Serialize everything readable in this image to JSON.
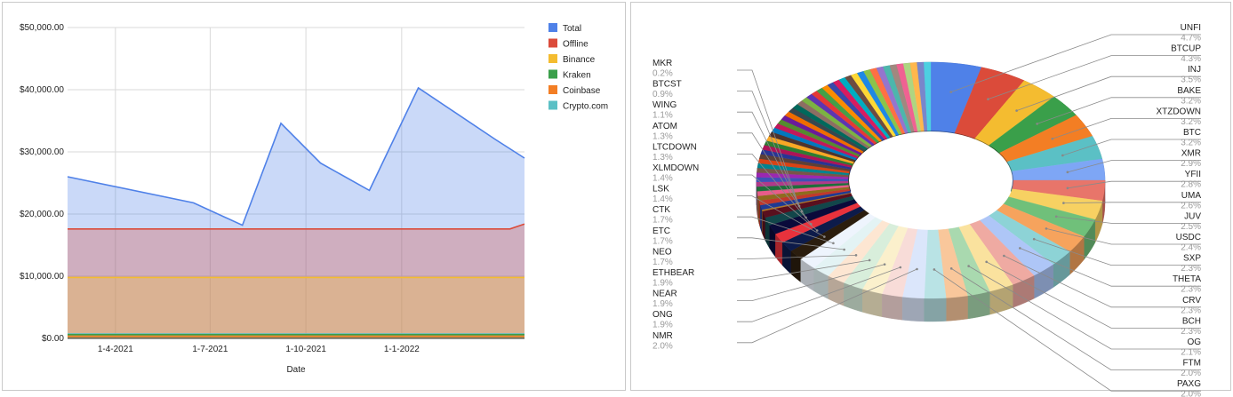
{
  "line_chart": {
    "chart_data": {
      "type": "area",
      "xlabel": "Date",
      "ylabel": "",
      "ylim": [
        0,
        50000
      ],
      "yticks": [
        "$0.00",
        "$10,000.00",
        "$20,000.00",
        "$30,000.00",
        "$40,000.00",
        "$50,000.00"
      ],
      "xticks": [
        "1-4-2021",
        "1-7-2021",
        "1-10-2021",
        "1-1-2022"
      ],
      "xtick_dates": [
        "2021-04-01",
        "2021-07-01",
        "2021-10-01",
        "2022-01-01"
      ],
      "x_range": [
        "2021-02-14",
        "2022-04-29"
      ],
      "grid": true,
      "legend_position": "right",
      "series": [
        {
          "name": "Total",
          "color": "#4f81e8",
          "points": [
            [
              "2021-02-14",
              26000
            ],
            [
              "2021-06-15",
              21800
            ],
            [
              "2021-08-01",
              18200
            ],
            [
              "2021-09-07",
              34600
            ],
            [
              "2021-10-15",
              28200
            ],
            [
              "2021-12-01",
              23800
            ],
            [
              "2022-01-17",
              40300
            ],
            [
              "2022-04-01",
              32000
            ],
            [
              "2022-04-29",
              29000
            ]
          ]
        },
        {
          "name": "Offline",
          "color": "#db4b3a",
          "points": [
            [
              "2021-02-14",
              17600
            ],
            [
              "2022-04-15",
              17600
            ],
            [
              "2022-04-29",
              18400
            ]
          ]
        },
        {
          "name": "Binance",
          "color": "#f4bc30",
          "points": [
            [
              "2021-02-14",
              9800
            ],
            [
              "2022-04-29",
              9800
            ]
          ]
        },
        {
          "name": "Kraken",
          "color": "#3a9f4a",
          "points": [
            [
              "2021-02-14",
              600
            ],
            [
              "2022-04-29",
              600
            ]
          ]
        },
        {
          "name": "Coinbase",
          "color": "#f37e24",
          "points": [
            [
              "2021-02-14",
              350
            ],
            [
              "2022-04-29",
              350
            ]
          ]
        },
        {
          "name": "Crypto.com",
          "color": "#5bc0c5",
          "points": [
            [
              "2021-02-14",
              700
            ],
            [
              "2022-04-29",
              700
            ]
          ]
        }
      ]
    }
  },
  "donut_chart": {
    "chart_data": {
      "type": "pie",
      "style": "3d-donut",
      "slices_labeled": [
        {
          "name": "UNFI",
          "value": 4.7,
          "label": "4.7%",
          "color": "#4f81e8"
        },
        {
          "name": "BTCUP",
          "value": 4.3,
          "label": "4.3%",
          "color": "#db4b3a"
        },
        {
          "name": "INJ",
          "value": 3.5,
          "label": "3.5%",
          "color": "#f4bc30"
        },
        {
          "name": "BAKE",
          "value": 3.2,
          "label": "3.2%",
          "color": "#3a9f4a"
        },
        {
          "name": "XTZDOWN",
          "value": 3.2,
          "label": "3.2%",
          "color": "#f37e24"
        },
        {
          "name": "BTC",
          "value": 3.2,
          "label": "3.2%",
          "color": "#5bc0c5"
        },
        {
          "name": "XMR",
          "value": 2.9,
          "label": "2.9%",
          "color": "#7ea6f5"
        },
        {
          "name": "YFII",
          "value": 2.8,
          "label": "2.8%",
          "color": "#e8756a"
        },
        {
          "name": "UMA",
          "value": 2.6,
          "label": "2.6%",
          "color": "#f7d162"
        },
        {
          "name": "JUV",
          "value": 2.5,
          "label": "2.5%",
          "color": "#70c07a"
        },
        {
          "name": "USDC",
          "value": 2.4,
          "label": "2.4%",
          "color": "#f6a35d"
        },
        {
          "name": "SXP",
          "value": 2.3,
          "label": "2.3%",
          "color": "#8dd3d6"
        },
        {
          "name": "THETA",
          "value": 2.3,
          "label": "2.3%",
          "color": "#aec6f7"
        },
        {
          "name": "CRV",
          "value": 2.3,
          "label": "2.3%",
          "color": "#efaaa2"
        },
        {
          "name": "BCH",
          "value": 2.3,
          "label": "2.3%",
          "color": "#fae29e"
        },
        {
          "name": "OG",
          "value": 2.1,
          "label": "2.1%",
          "color": "#a9d9af"
        },
        {
          "name": "FTM",
          "value": 2.0,
          "label": "2.0%",
          "color": "#f9c79b"
        },
        {
          "name": "PAXG",
          "value": 2.0,
          "label": "2.0%",
          "color": "#b9e3e5"
        },
        {
          "name": "NMR",
          "value": 2.0,
          "label": "2.0%",
          "color": "#dbe6fb"
        },
        {
          "name": "ONG",
          "value": 1.9,
          "label": "1.9%",
          "color": "#f8dcd8"
        },
        {
          "name": "NEAR",
          "value": 1.9,
          "label": "1.9%",
          "color": "#fbf0cc"
        },
        {
          "name": "ETHBEAR",
          "value": 1.9,
          "label": "1.9%",
          "color": "#d8eedb"
        },
        {
          "name": "NEO",
          "value": 1.7,
          "label": "1.7%",
          "color": "#fde6d2"
        },
        {
          "name": "ETC",
          "value": 1.7,
          "label": "1.7%",
          "color": "#e3f3f4"
        },
        {
          "name": "CTK",
          "value": 1.7,
          "label": "1.7%",
          "color": "#eef4fd"
        },
        {
          "name": "LSK",
          "value": 1.4,
          "label": "1.4%",
          "color": "#2b1d0e"
        },
        {
          "name": "XLMDOWN",
          "value": 1.4,
          "label": "1.4%",
          "color": "#0d1b4a"
        },
        {
          "name": "LTCDOWN",
          "value": 1.3,
          "label": "1.3%",
          "color": "#e8323c"
        },
        {
          "name": "ATOM",
          "value": 1.3,
          "label": "1.3%",
          "color": "#0a0a3a"
        },
        {
          "name": "WING",
          "value": 1.1,
          "label": "1.1%",
          "color": "#12464a"
        },
        {
          "name": "BTCST",
          "value": 0.9,
          "label": "0.9%",
          "color": "#5a0f1e"
        },
        {
          "name": "MKR",
          "value": 0.2,
          "label": "0.2%",
          "color": "#b07a2a"
        }
      ],
      "unlabeled_slice_colors": [
        "#1f3a93",
        "#c0392b",
        "#8e6b1e",
        "#e85c8a",
        "#1e6e3a",
        "#b03a8a",
        "#3f51b5",
        "#9c27b0",
        "#795548",
        "#00838f",
        "#d84315",
        "#5d4037",
        "#283593",
        "#ad1457",
        "#2e7d32",
        "#f9a825",
        "#4e342e",
        "#0277bd",
        "#c2185b",
        "#558b2f",
        "#6a1b9a",
        "#ef6c00",
        "#37474f",
        "#00695c",
        "#8d6e63",
        "#7cb342",
        "#5e35b1",
        "#e53935",
        "#43a047",
        "#fb8c00",
        "#3949ab",
        "#d81b60",
        "#00acc1",
        "#6d4c41",
        "#fdd835",
        "#1e88e5",
        "#8bc34a",
        "#ff7043",
        "#9575cd",
        "#4db6ac",
        "#a1887f",
        "#f06292",
        "#aed581",
        "#ffb74d",
        "#7986cb",
        "#4dd0e1"
      ]
    }
  }
}
